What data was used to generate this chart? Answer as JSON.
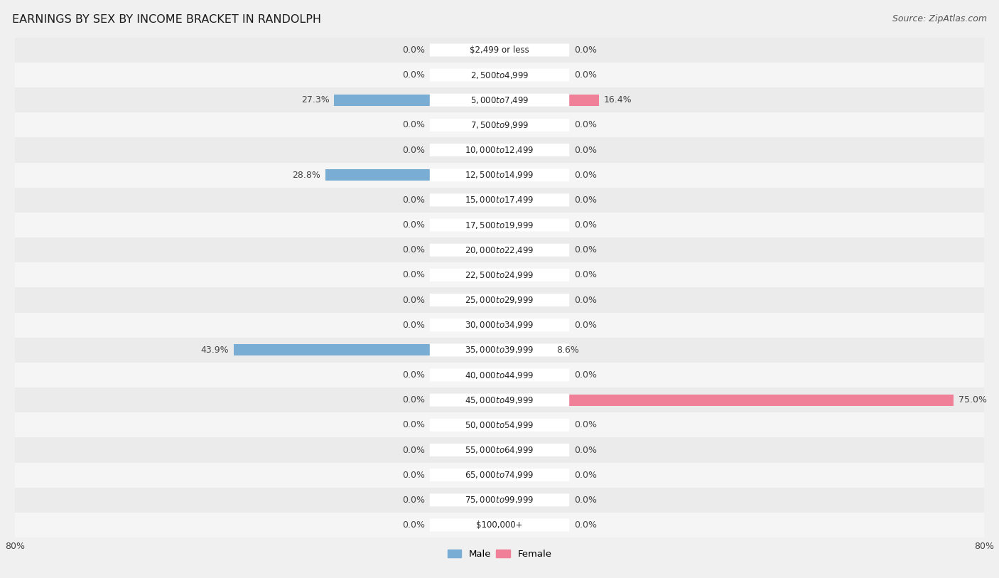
{
  "title": "EARNINGS BY SEX BY INCOME BRACKET IN RANDOLPH",
  "source": "Source: ZipAtlas.com",
  "categories": [
    "$2,499 or less",
    "$2,500 to $4,999",
    "$5,000 to $7,499",
    "$7,500 to $9,999",
    "$10,000 to $12,499",
    "$12,500 to $14,999",
    "$15,000 to $17,499",
    "$17,500 to $19,999",
    "$20,000 to $22,499",
    "$22,500 to $24,999",
    "$25,000 to $29,999",
    "$30,000 to $34,999",
    "$35,000 to $39,999",
    "$40,000 to $44,999",
    "$45,000 to $49,999",
    "$50,000 to $54,999",
    "$55,000 to $64,999",
    "$65,000 to $74,999",
    "$75,000 to $99,999",
    "$100,000+"
  ],
  "male_values": [
    0.0,
    0.0,
    27.3,
    0.0,
    0.0,
    28.8,
    0.0,
    0.0,
    0.0,
    0.0,
    0.0,
    0.0,
    43.9,
    0.0,
    0.0,
    0.0,
    0.0,
    0.0,
    0.0,
    0.0
  ],
  "female_values": [
    0.0,
    0.0,
    16.4,
    0.0,
    0.0,
    0.0,
    0.0,
    0.0,
    0.0,
    0.0,
    0.0,
    0.0,
    8.6,
    0.0,
    75.0,
    0.0,
    0.0,
    0.0,
    0.0,
    0.0
  ],
  "male_color": "#7aadd4",
  "female_color": "#f08098",
  "male_color_light": "#b8d0ea",
  "female_color_light": "#f4bbc8",
  "male_label": "Male",
  "female_label": "Female",
  "xlim": 80.0,
  "bg_odd": "#ebebeb",
  "bg_even": "#f5f5f5",
  "title_fontsize": 11.5,
  "source_fontsize": 9,
  "value_fontsize": 9,
  "category_fontsize": 8.5,
  "bar_height": 0.45,
  "label_color": "#444444",
  "cat_label_color": "#222222"
}
